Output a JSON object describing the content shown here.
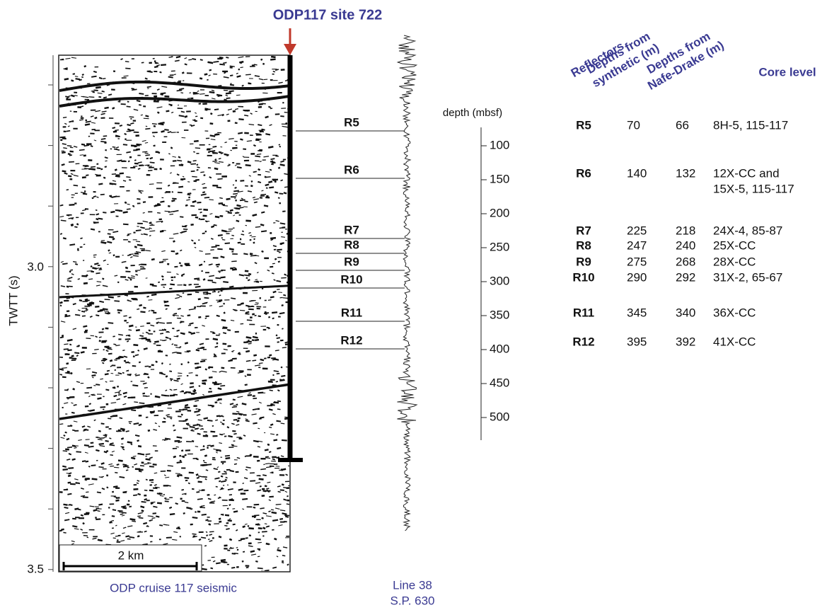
{
  "title": "ODP117 site 722",
  "seismic": {
    "caption": "ODP cruise 117 seismic",
    "axis_label": "TWTT (s)",
    "ticks": [
      "3.0",
      "3.5"
    ],
    "scale_bar": "2 km"
  },
  "profile": {
    "reflectors": [
      {
        "label": "R5",
        "color": "#2e4fa0"
      },
      {
        "label": "R6",
        "color": "#7b3fa0"
      },
      {
        "label": "R7",
        "color": "#a0368c"
      },
      {
        "label": "R8",
        "color": "#a52f80"
      },
      {
        "label": "R9",
        "color": "#b0307a"
      },
      {
        "label": "R10",
        "color": "#c0332d"
      },
      {
        "label": "R11",
        "color": "#e88a1e"
      },
      {
        "label": "R12",
        "color": "#c8742a"
      }
    ],
    "caption": [
      "Line 38",
      "S.P. 630"
    ]
  },
  "depth_axis": {
    "label": "depth (mbsf)",
    "ticks": [
      100,
      150,
      200,
      250,
      300,
      350,
      400,
      450,
      500
    ]
  },
  "table": {
    "headers": [
      "Reflectors",
      "Depths from synthetic (m)",
      "Depths from Nafe-Drake (m)",
      "Core level"
    ],
    "rows": [
      [
        "R5",
        "70",
        "66",
        [
          "8H-5, 115-117"
        ]
      ],
      [
        "R6",
        "140",
        "132",
        [
          "12X-CC and",
          "15X-5, 115-117"
        ]
      ],
      [
        "R7",
        "225",
        "218",
        [
          "24X-4, 85-87"
        ]
      ],
      [
        "R8",
        "247",
        "240",
        [
          "25X-CC"
        ]
      ],
      [
        "R9",
        "275",
        "268",
        [
          "28X-CC"
        ]
      ],
      [
        "R10",
        "290",
        "292",
        [
          "31X-2, 65-67"
        ]
      ],
      [
        "R11",
        "345",
        "340",
        [
          "36X-CC"
        ]
      ],
      [
        "R12",
        "395",
        "392",
        [
          "41X-CC"
        ]
      ]
    ]
  }
}
